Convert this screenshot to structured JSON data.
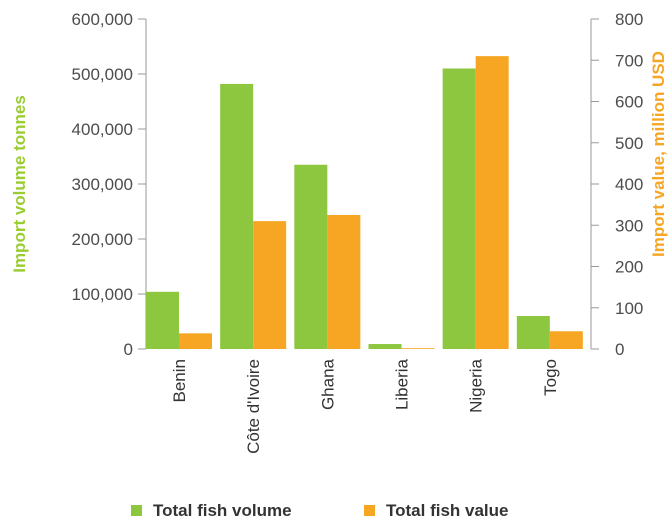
{
  "chart_data": {
    "type": "bar",
    "categories": [
      "Benin",
      "Côte d'Ivoire",
      "Ghana",
      "Liberia",
      "Nigeria",
      "Togo"
    ],
    "series": [
      {
        "name": "Total fish volume",
        "axis": "left",
        "color": "#8dc63f",
        "values": [
          104000,
          482000,
          335000,
          9000,
          510000,
          60000
        ]
      },
      {
        "name": "Total fish value",
        "axis": "right",
        "color": "#f6a623",
        "values": [
          38,
          310,
          325,
          2,
          710,
          43
        ]
      }
    ],
    "ylabel": "Import volume tonnes",
    "ylabel_color": "#9acd32",
    "ylim": [
      0,
      600000
    ],
    "yticks": [
      "0",
      "100,000",
      "200,000",
      "300,000",
      "400,000",
      "500,000",
      "600,000"
    ],
    "ylabel_right": "Import value, million USD",
    "ylabel_right_color": "#f6a623",
    "ylim_right": [
      0,
      800
    ],
    "yticks_right": [
      "0",
      "100",
      "200",
      "300",
      "400",
      "500",
      "600",
      "700",
      "800"
    ],
    "legend_position": "bottom",
    "grid": false
  }
}
